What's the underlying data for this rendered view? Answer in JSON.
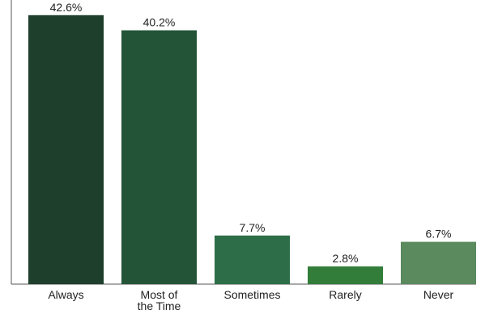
{
  "chart_data": {
    "type": "bar",
    "categories": [
      [
        "Always"
      ],
      [
        "Most of",
        "the Time"
      ],
      [
        "Sometimes"
      ],
      [
        "Rarely"
      ],
      [
        "Never"
      ]
    ],
    "values": [
      42.6,
      40.2,
      7.7,
      2.8,
      6.7
    ],
    "value_labels": [
      "42.6%",
      "40.2%",
      "7.7%",
      "2.8%",
      "6.7%"
    ],
    "colors": [
      "#1e3f2c",
      "#235437",
      "#2d6e48",
      "#327d3a",
      "#5a8a5d"
    ],
    "ylim": [
      0,
      45
    ],
    "grid": false,
    "legend": "none"
  }
}
